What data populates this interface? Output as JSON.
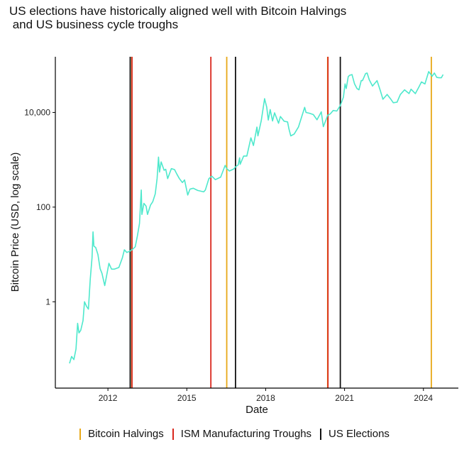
{
  "chart_data": {
    "type": "line",
    "title": "US elections have historically aligned well with Bitcoin Halvings\n and US business cycle troughs",
    "xlabel": "Date",
    "ylabel": "Bitcoin Price (USD, log scale)",
    "x_scale": "date",
    "y_scale": "log",
    "xlim": [
      "2010-01-01",
      "2025-05-01"
    ],
    "ylim": [
      0.015,
      150000
    ],
    "x_ticks": [
      {
        "date": "2012-01-01",
        "label": "2012"
      },
      {
        "date": "2015-01-01",
        "label": "2015"
      },
      {
        "date": "2018-01-01",
        "label": "2018"
      },
      {
        "date": "2021-01-01",
        "label": "2021"
      },
      {
        "date": "2024-01-01",
        "label": "2024"
      }
    ],
    "y_ticks": [
      {
        "value": 1,
        "label": "1"
      },
      {
        "value": 100,
        "label": "100"
      },
      {
        "value": 10000,
        "label": "10,000"
      }
    ],
    "grid": false,
    "legend_position": "bottom",
    "colors": {
      "price_line": "#4ee8cc",
      "halving": "#e8a817",
      "ism_trough": "#d9261c",
      "election": "#111111",
      "axis": "#000000"
    },
    "series": [
      {
        "type": "line",
        "color": "#4ee8cc",
        "points": [
          [
            "2010-07-17",
            0.05
          ],
          [
            "2010-08-15",
            0.07
          ],
          [
            "2010-09-15",
            0.06
          ],
          [
            "2010-10-15",
            0.1
          ],
          [
            "2010-11-06",
            0.35
          ],
          [
            "2010-11-25",
            0.22
          ],
          [
            "2010-12-20",
            0.25
          ],
          [
            "2011-01-20",
            0.4
          ],
          [
            "2011-02-10",
            1.0
          ],
          [
            "2011-03-10",
            0.8
          ],
          [
            "2011-04-05",
            0.7
          ],
          [
            "2011-05-01",
            3.0
          ],
          [
            "2011-05-25",
            8.5
          ],
          [
            "2011-06-08",
            30.0
          ],
          [
            "2011-06-20",
            15.0
          ],
          [
            "2011-07-15",
            14.0
          ],
          [
            "2011-08-15",
            10.0
          ],
          [
            "2011-09-15",
            5.0
          ],
          [
            "2011-10-10",
            4.0
          ],
          [
            "2011-11-18",
            2.2
          ],
          [
            "2011-12-20",
            4.0
          ],
          [
            "2012-01-15",
            6.5
          ],
          [
            "2012-02-20",
            4.9
          ],
          [
            "2012-04-01",
            4.9
          ],
          [
            "2012-06-01",
            5.3
          ],
          [
            "2012-07-20",
            8.5
          ],
          [
            "2012-08-17",
            12.5
          ],
          [
            "2012-09-20",
            11.0
          ],
          [
            "2012-10-20",
            11.5
          ],
          [
            "2012-12-01",
            12.5
          ],
          [
            "2013-01-15",
            14.5
          ],
          [
            "2013-02-15",
            25.0
          ],
          [
            "2013-03-15",
            45.0
          ],
          [
            "2013-04-09",
            230.0
          ],
          [
            "2013-04-18",
            70.0
          ],
          [
            "2013-05-15",
            120.0
          ],
          [
            "2013-06-15",
            105.0
          ],
          [
            "2013-07-05",
            70.0
          ],
          [
            "2013-08-15",
            110.0
          ],
          [
            "2013-09-15",
            130.0
          ],
          [
            "2013-10-20",
            190.0
          ],
          [
            "2013-11-15",
            400.0
          ],
          [
            "2013-12-04",
            1140.0
          ],
          [
            "2013-12-18",
            550.0
          ],
          [
            "2014-01-10",
            900.0
          ],
          [
            "2014-02-20",
            600.0
          ],
          [
            "2014-03-15",
            630.0
          ],
          [
            "2014-04-10",
            400.0
          ],
          [
            "2014-06-01",
            650.0
          ],
          [
            "2014-07-15",
            620.0
          ],
          [
            "2014-08-15",
            500.0
          ],
          [
            "2014-09-20",
            400.0
          ],
          [
            "2014-11-01",
            330.0
          ],
          [
            "2014-12-01",
            375.0
          ],
          [
            "2015-01-14",
            180.0
          ],
          [
            "2015-02-15",
            240.0
          ],
          [
            "2015-04-01",
            250.0
          ],
          [
            "2015-06-01",
            225.0
          ],
          [
            "2015-08-24",
            210.0
          ],
          [
            "2015-09-15",
            230.0
          ],
          [
            "2015-11-04",
            400.0
          ],
          [
            "2015-12-15",
            450.0
          ],
          [
            "2016-02-01",
            380.0
          ],
          [
            "2016-04-15",
            430.0
          ],
          [
            "2016-06-17",
            760.0
          ],
          [
            "2016-07-09",
            650.0
          ],
          [
            "2016-08-15",
            580.0
          ],
          [
            "2016-10-15",
            640.0
          ],
          [
            "2016-11-08",
            710.0
          ],
          [
            "2016-12-15",
            780.0
          ],
          [
            "2017-01-04",
            1100.0
          ],
          [
            "2017-01-12",
            800.0
          ],
          [
            "2017-03-01",
            1200.0
          ],
          [
            "2017-04-15",
            1200.0
          ],
          [
            "2017-06-10",
            2900.0
          ],
          [
            "2017-07-15",
            2000.0
          ],
          [
            "2017-09-01",
            4900.0
          ],
          [
            "2017-09-15",
            3200.0
          ],
          [
            "2017-11-01",
            6700.0
          ],
          [
            "2017-12-17",
            19500.0
          ],
          [
            "2018-01-15",
            13000.0
          ],
          [
            "2018-02-06",
            6900.0
          ],
          [
            "2018-03-05",
            11500.0
          ],
          [
            "2018-04-06",
            6600.0
          ],
          [
            "2018-05-05",
            9800.0
          ],
          [
            "2018-06-29",
            5900.0
          ],
          [
            "2018-07-25",
            8200.0
          ],
          [
            "2018-09-15",
            6500.0
          ],
          [
            "2018-11-01",
            6300.0
          ],
          [
            "2018-11-20",
            4500.0
          ],
          [
            "2018-12-15",
            3200.0
          ],
          [
            "2019-02-01",
            3500.0
          ],
          [
            "2019-04-01",
            4900.0
          ],
          [
            "2019-05-15",
            8000.0
          ],
          [
            "2019-06-26",
            12800.0
          ],
          [
            "2019-07-15",
            10000.0
          ],
          [
            "2019-09-01",
            9600.0
          ],
          [
            "2019-10-25",
            9000.0
          ],
          [
            "2019-12-15",
            7000.0
          ],
          [
            "2020-02-12",
            10300.0
          ],
          [
            "2020-03-12",
            5000.0
          ],
          [
            "2020-04-15",
            6800.0
          ],
          [
            "2020-05-11",
            8700.0
          ],
          [
            "2020-06-15",
            9300.0
          ],
          [
            "2020-07-27",
            11000.0
          ],
          [
            "2020-09-15",
            10700.0
          ],
          [
            "2020-11-03",
            14000.0
          ],
          [
            "2020-12-16",
            21000.0
          ],
          [
            "2021-01-08",
            40000.0
          ],
          [
            "2021-01-25",
            32000.0
          ],
          [
            "2021-02-21",
            57000.0
          ],
          [
            "2021-03-13",
            61000.0
          ],
          [
            "2021-04-14",
            63000.0
          ],
          [
            "2021-05-20",
            40000.0
          ],
          [
            "2021-06-22",
            32000.0
          ],
          [
            "2021-07-20",
            30000.0
          ],
          [
            "2021-08-20",
            47000.0
          ],
          [
            "2021-09-07",
            47000.0
          ],
          [
            "2021-10-20",
            66000.0
          ],
          [
            "2021-11-10",
            68000.0
          ],
          [
            "2021-12-10",
            49000.0
          ],
          [
            "2022-01-24",
            36000.0
          ],
          [
            "2022-03-28",
            47000.0
          ],
          [
            "2022-05-12",
            29000.0
          ],
          [
            "2022-06-18",
            19000.0
          ],
          [
            "2022-08-15",
            24000.0
          ],
          [
            "2022-09-30",
            19500.0
          ],
          [
            "2022-11-09",
            16000.0
          ],
          [
            "2022-12-31",
            16500.0
          ],
          [
            "2023-02-15",
            24000.0
          ],
          [
            "2023-04-14",
            30000.0
          ],
          [
            "2023-06-15",
            25000.0
          ],
          [
            "2023-07-13",
            31000.0
          ],
          [
            "2023-09-11",
            25000.0
          ],
          [
            "2023-11-01",
            35000.0
          ],
          [
            "2023-12-05",
            44000.0
          ],
          [
            "2024-01-22",
            40000.0
          ],
          [
            "2024-03-14",
            73000.0
          ],
          [
            "2024-05-01",
            58000.0
          ],
          [
            "2024-06-01",
            68000.0
          ],
          [
            "2024-07-05",
            55000.0
          ],
          [
            "2024-08-05",
            54000.0
          ],
          [
            "2024-09-06",
            54000.0
          ],
          [
            "2024-10-01",
            63000.0
          ]
        ]
      }
    ],
    "vertical_lines": [
      {
        "category": "election",
        "date": "2012-11-06"
      },
      {
        "category": "halving",
        "date": "2012-11-28"
      },
      {
        "category": "ism_trough",
        "date": "2012-12-01"
      },
      {
        "category": "ism_trough",
        "date": "2015-12-01"
      },
      {
        "category": "halving",
        "date": "2016-07-09"
      },
      {
        "category": "election",
        "date": "2016-11-08"
      },
      {
        "category": "halving",
        "date": "2020-05-11"
      },
      {
        "category": "ism_trough",
        "date": "2020-05-15"
      },
      {
        "category": "election",
        "date": "2020-11-03"
      },
      {
        "category": "halving",
        "date": "2024-04-20"
      }
    ],
    "legend": [
      {
        "key": "halving",
        "label": "Bitcoin Halvings"
      },
      {
        "key": "ism_trough",
        "label": "ISM Manufacturing Troughs"
      },
      {
        "key": "election",
        "label": "US Elections"
      }
    ]
  }
}
